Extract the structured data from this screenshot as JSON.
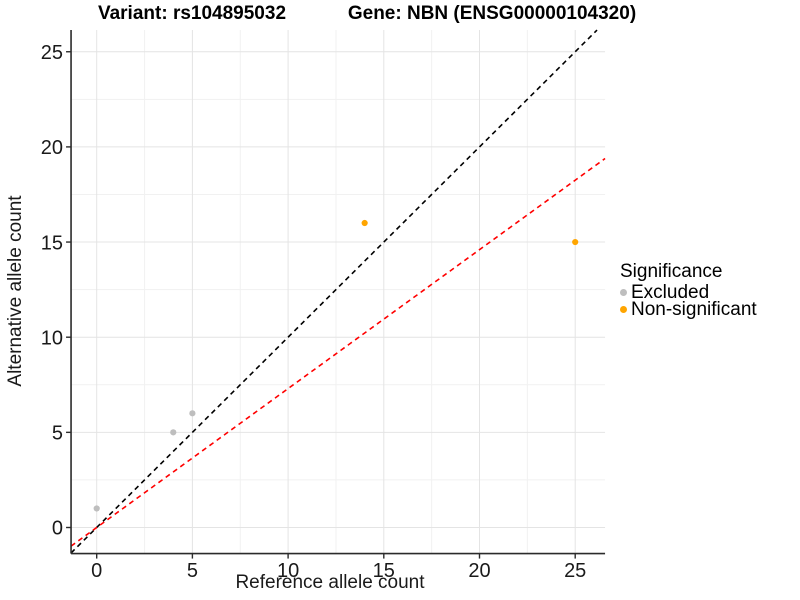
{
  "title": {
    "variant": "Variant: rs104895032",
    "gene": "Gene: NBN (ENSG00000104320)"
  },
  "axes": {
    "x": {
      "label": "Reference allele count",
      "ticks": [
        0,
        5,
        10,
        15,
        20,
        25
      ]
    },
    "y": {
      "label": "Alternative allele count",
      "ticks": [
        0,
        5,
        10,
        15,
        20,
        25
      ]
    }
  },
  "legend": {
    "title": "Significance",
    "items": [
      {
        "label": "Excluded",
        "color": "#BEBEBE"
      },
      {
        "label": "Non-significant",
        "color": "#FFA500"
      }
    ]
  },
  "colors": {
    "identity_line": "#000000",
    "ratio_line": "#FF0000",
    "axis_line": "#2b2b2b",
    "grid_major": "#E4E4E4",
    "grid_minor": "#F1F1F1"
  },
  "chart_data": {
    "type": "scatter",
    "title": "Variant: rs104895032    Gene: NBN (ENSG00000104320)",
    "xlabel": "Reference allele count",
    "ylabel": "Alternative allele count",
    "xlim": [
      -1.34,
      26.56
    ],
    "ylim": [
      -1.37,
      26.14
    ],
    "grid": true,
    "legend_position": "right",
    "series": [
      {
        "name": "Excluded",
        "color": "#BEBEBE",
        "points": [
          [
            0,
            1
          ],
          [
            4,
            5
          ],
          [
            5,
            6
          ]
        ]
      },
      {
        "name": "Non-significant",
        "color": "#FFA500",
        "points": [
          [
            14,
            16
          ],
          [
            25,
            15
          ]
        ]
      }
    ],
    "lines": [
      {
        "name": "identity",
        "slope": 1.0,
        "intercept": 0,
        "color": "#000000",
        "style": "dashed"
      },
      {
        "name": "fitted-ratio",
        "slope": 0.73,
        "intercept": 0,
        "color": "#FF0000",
        "style": "dashed"
      }
    ],
    "minor_gridlines": [
      2.5,
      7.5,
      12.5,
      17.5,
      22.5
    ]
  }
}
